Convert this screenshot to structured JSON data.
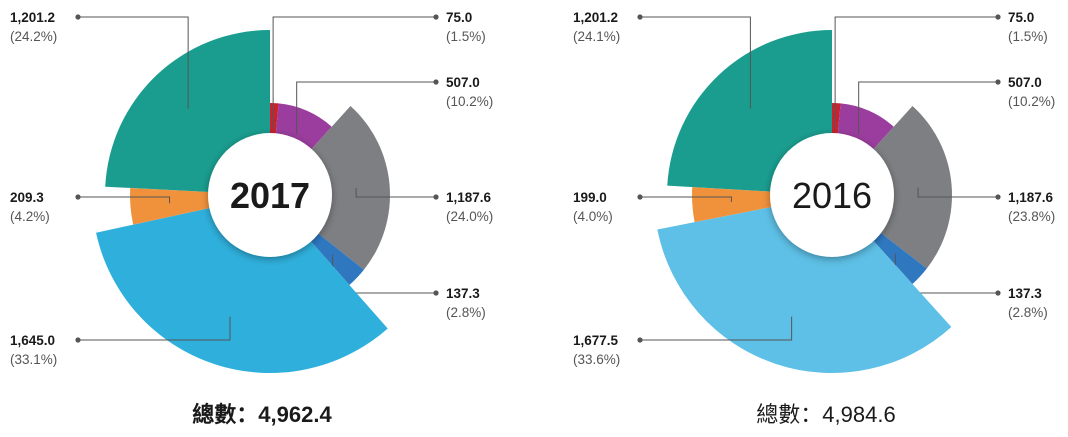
{
  "chart_data": [
    {
      "type": "pie",
      "center_label": "2017",
      "center_bold": true,
      "total_text": "總數：4,962.4",
      "total_bold": true,
      "slices": [
        {
          "value": "75.0",
          "percent": "(1.5%)",
          "fraction": 0.015,
          "color": "#c8242f",
          "label_side": "right"
        },
        {
          "value": "507.0",
          "percent": "(10.2%)",
          "fraction": 0.102,
          "color": "#9b3d9e",
          "label_side": "right"
        },
        {
          "value": "1,187.6",
          "percent": "(24.0%)",
          "fraction": 0.24,
          "color": "#7d7f82",
          "label_side": "right"
        },
        {
          "value": "137.3",
          "percent": "(2.8%)",
          "fraction": 0.028,
          "color": "#2f78c0",
          "label_side": "right"
        },
        {
          "value": "1,645.0",
          "percent": "(33.1%)",
          "fraction": 0.331,
          "color": "#2fb0dc",
          "label_side": "left"
        },
        {
          "value": "209.3",
          "percent": "(4.2%)",
          "fraction": 0.042,
          "color": "#f0923c",
          "label_side": "left"
        },
        {
          "value": "1,201.2",
          "percent": "(24.2%)",
          "fraction": 0.242,
          "color": "#1a9d8f",
          "label_side": "left"
        }
      ]
    },
    {
      "type": "pie",
      "center_label": "2016",
      "center_bold": false,
      "total_text": "總數：4,984.6",
      "total_bold": false,
      "slices": [
        {
          "value": "75.0",
          "percent": "(1.5%)",
          "fraction": 0.015,
          "color": "#c8242f",
          "label_side": "right"
        },
        {
          "value": "507.0",
          "percent": "(10.2%)",
          "fraction": 0.102,
          "color": "#9b3d9e",
          "label_side": "right"
        },
        {
          "value": "1,187.6",
          "percent": "(23.8%)",
          "fraction": 0.238,
          "color": "#7d7f82",
          "label_side": "right"
        },
        {
          "value": "137.3",
          "percent": "(2.8%)",
          "fraction": 0.028,
          "color": "#2f78c0",
          "label_side": "right"
        },
        {
          "value": "1,677.5",
          "percent": "(33.6%)",
          "fraction": 0.336,
          "color": "#5ec0e6",
          "label_side": "left"
        },
        {
          "value": "199.0",
          "percent": "(4.0%)",
          "fraction": 0.04,
          "color": "#f0923c",
          "label_side": "left"
        },
        {
          "value": "1,201.2",
          "percent": "(24.1%)",
          "fraction": 0.241,
          "color": "#1a9d8f",
          "label_side": "left"
        }
      ]
    }
  ]
}
